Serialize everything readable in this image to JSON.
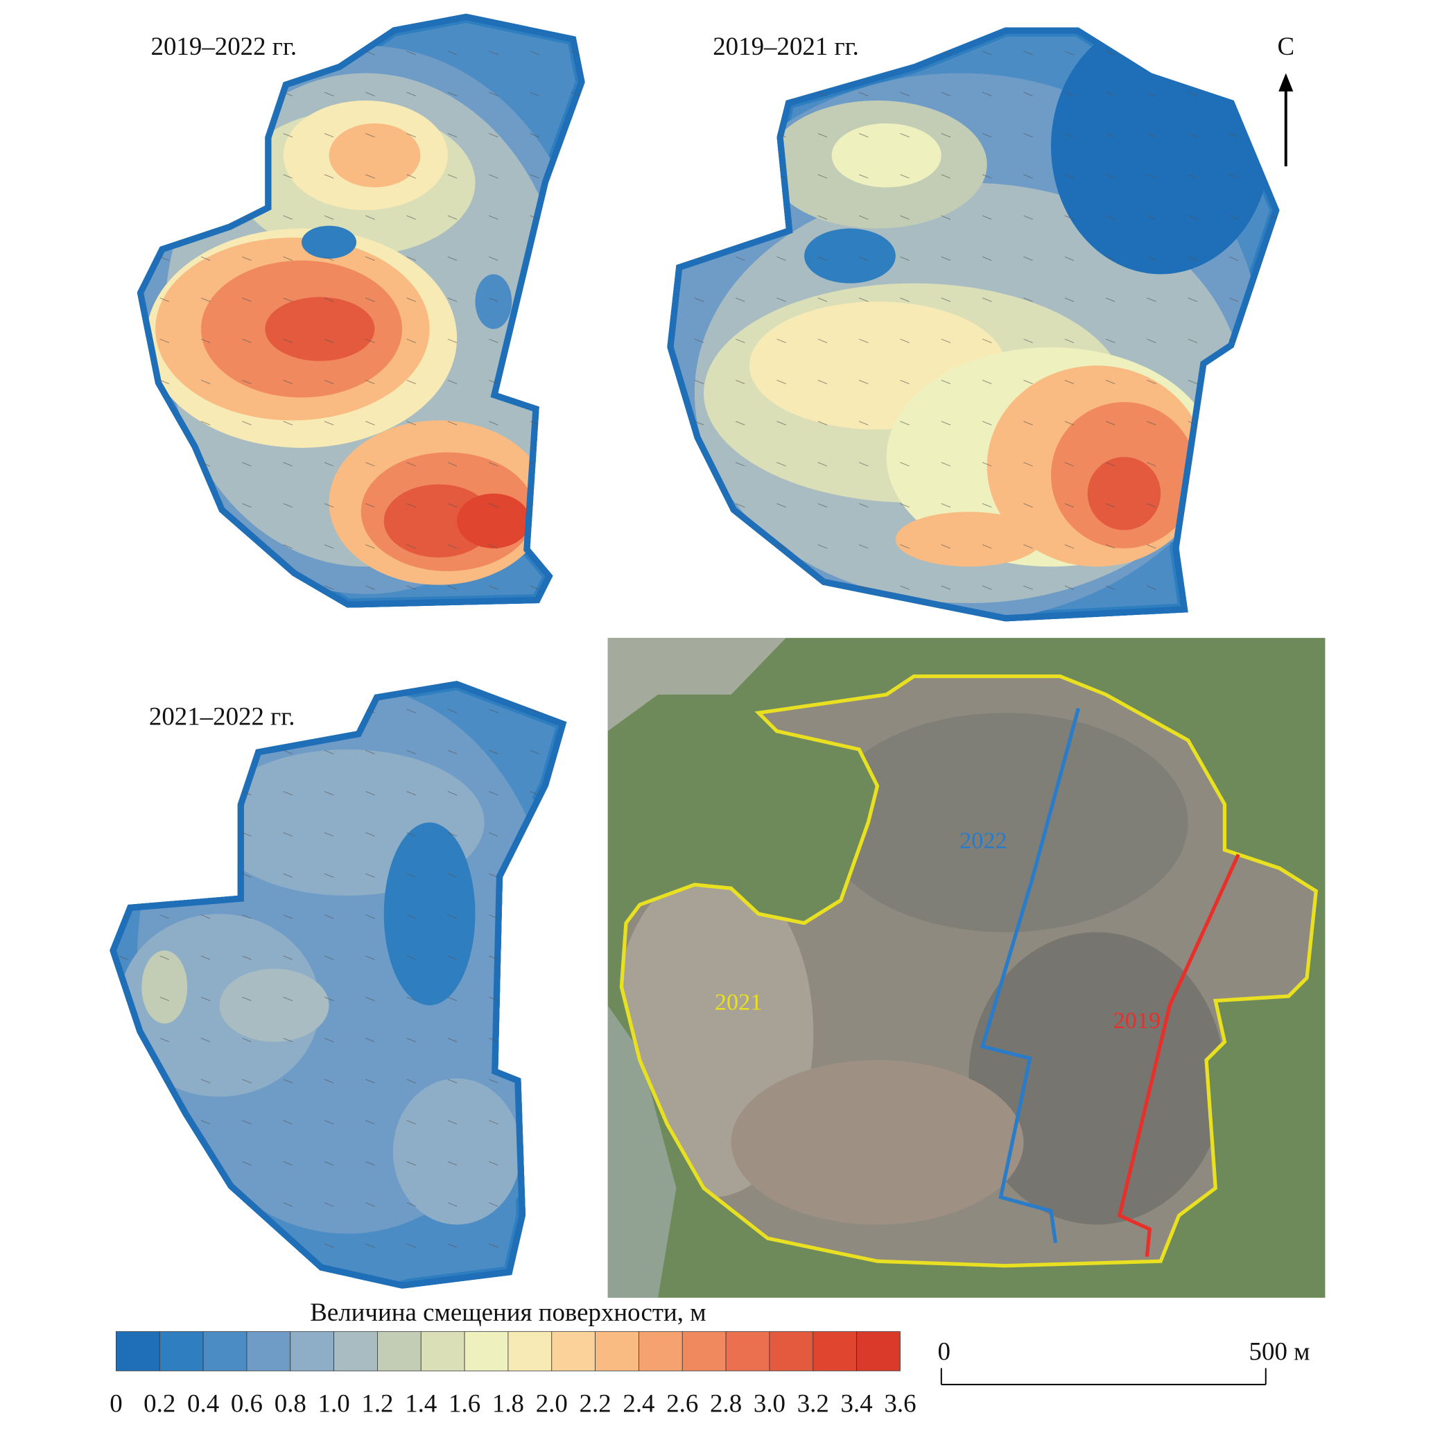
{
  "panels": [
    {
      "title": "2019–2022 гг."
    },
    {
      "title": "2019–2021 гг."
    },
    {
      "title": "2021–2022 гг."
    }
  ],
  "north": "С",
  "photo": {
    "labels": [
      "2022",
      "2021",
      "2019"
    ],
    "colors": [
      "#2a7bc8",
      "#e8e020",
      "#e8302a"
    ]
  },
  "legend": {
    "title": "Величина смещения поверхности, м",
    "ticks": [
      "0",
      "0.2",
      "0.4",
      "0.6",
      "0.8",
      "1.0",
      "1.2",
      "1.4",
      "1.6",
      "1.8",
      "2.0",
      "2.2",
      "2.4",
      "2.6",
      "2.8",
      "3.0",
      "3.2",
      "3.4",
      "3.6"
    ],
    "colors": [
      "#1f6fb8",
      "#2f7fc0",
      "#4c8cc4",
      "#6f9cc6",
      "#8eaec8",
      "#a8bcc2",
      "#c3cdb6",
      "#dadfb8",
      "#eef0be",
      "#f8eab4",
      "#fbd39a",
      "#f9bb82",
      "#f5a270",
      "#f08a5e",
      "#ea7050",
      "#e45a3e",
      "#e0452f",
      "#d93a2a"
    ]
  },
  "scale_bar": {
    "labels": [
      "0",
      "500 м"
    ]
  }
}
